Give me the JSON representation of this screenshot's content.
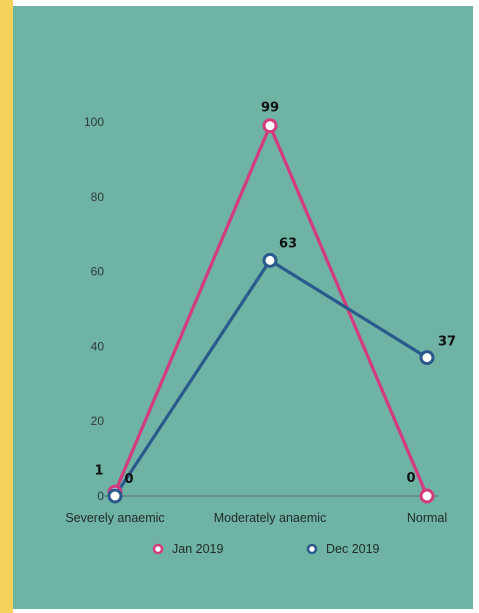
{
  "colors": {
    "background": "#6fb3a4",
    "accent_bar": "#f5d25a",
    "series_jan": "#d53a7e",
    "series_dec": "#2a5a8c",
    "axis": "#55706b"
  },
  "chart_data": {
    "type": "line",
    "categories": [
      "Severely anaemic",
      "Moderately anaemic",
      "Normal"
    ],
    "series": [
      {
        "name": "Jan 2019",
        "values": [
          1,
          99,
          0
        ],
        "color": "#d53a7e"
      },
      {
        "name": "Dec 2019",
        "values": [
          0,
          63,
          37
        ],
        "color": "#2a5a8c"
      }
    ],
    "y_ticks": [
      0,
      20,
      40,
      60,
      80,
      100
    ],
    "ylim": [
      0,
      100
    ],
    "grid": false,
    "legend_position": "bottom-center",
    "data_labels": true
  }
}
